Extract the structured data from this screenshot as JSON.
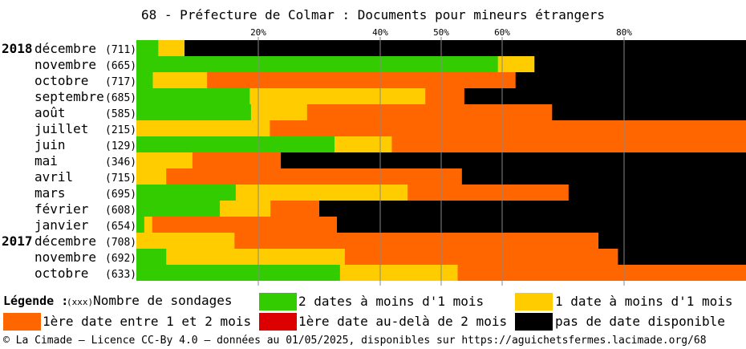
{
  "title": "68 - Préfecture de Colmar : Documents pour mineurs étrangers",
  "colors": {
    "green": "#33cc00",
    "yellow": "#ffcc00",
    "orange": "#ff6600",
    "red": "#dd0000",
    "black": "#000000",
    "grid": "#888888"
  },
  "chart_data": {
    "type": "bar",
    "orientation": "horizontal",
    "stacked": true,
    "xlim": [
      0,
      100
    ],
    "x_ticks": [
      {
        "value": 20,
        "label": "20%"
      },
      {
        "value": 40,
        "label": "40%"
      },
      {
        "value": 50,
        "label": "50%"
      },
      {
        "value": 60,
        "label": "60%"
      },
      {
        "value": 80,
        "label": "80%"
      }
    ],
    "series_colors": [
      "#33cc00",
      "#ffcc00",
      "#ff6600",
      "#dd0000",
      "#000000"
    ],
    "rows": [
      {
        "year": "2018",
        "month": "décembre",
        "count": "(711)",
        "values": [
          3.6,
          4.3,
          0,
          0,
          92.1
        ]
      },
      {
        "year": "",
        "month": "novembre",
        "count": "(665)",
        "values": [
          59.3,
          6.0,
          0,
          0,
          34.7
        ]
      },
      {
        "year": "",
        "month": "octobre",
        "count": "(717)",
        "values": [
          2.7,
          8.9,
          50.6,
          0,
          37.8
        ]
      },
      {
        "year": "",
        "month": "septembre",
        "count": "(685)",
        "values": [
          18.6,
          28.8,
          6.4,
          0,
          46.2
        ]
      },
      {
        "year": "",
        "month": "août",
        "count": "(585)",
        "values": [
          18.8,
          9.2,
          40.2,
          0,
          31.8
        ]
      },
      {
        "year": "",
        "month": "juillet",
        "count": "(215)",
        "values": [
          0,
          21.9,
          78.1,
          0,
          0
        ]
      },
      {
        "year": "",
        "month": "juin",
        "count": "(129)",
        "values": [
          32.5,
          9.4,
          58.1,
          0,
          0
        ]
      },
      {
        "year": "",
        "month": "mai",
        "count": "(346)",
        "values": [
          0,
          9.2,
          14.5,
          0,
          76.3
        ]
      },
      {
        "year": "",
        "month": "avril",
        "count": "(715)",
        "values": [
          0,
          4.9,
          48.5,
          0,
          46.6
        ]
      },
      {
        "year": "",
        "month": "mars",
        "count": "(695)",
        "values": [
          16.3,
          28.2,
          26.4,
          0,
          29.1
        ]
      },
      {
        "year": "",
        "month": "février",
        "count": "(608)",
        "values": [
          13.7,
          8.3,
          8.0,
          0,
          70.0
        ]
      },
      {
        "year": "",
        "month": "janvier",
        "count": "(654)",
        "values": [
          1.3,
          1.3,
          30.3,
          0,
          67.1
        ]
      },
      {
        "year": "2017",
        "month": "décembre",
        "count": "(708)",
        "values": [
          0,
          16.1,
          59.7,
          0,
          24.2
        ]
      },
      {
        "year": "",
        "month": "novembre",
        "count": "(692)",
        "values": [
          4.9,
          29.3,
          44.8,
          0,
          21.0
        ]
      },
      {
        "year": "",
        "month": "octobre",
        "count": "(633)",
        "values": [
          33.4,
          19.3,
          47.3,
          0,
          0
        ]
      }
    ]
  },
  "legend": {
    "title": "Légende :",
    "hint": "(xxx)",
    "hint_text": "Nombre de sondages",
    "items": [
      {
        "label": "2 dates à moins d'1 mois",
        "color": "#33cc00"
      },
      {
        "label": "1 date à moins d'1 mois",
        "color": "#ffcc00"
      },
      {
        "label": "1ère date entre 1 et 2 mois",
        "color": "#ff6600"
      },
      {
        "label": "1ère date au-delà de 2 mois",
        "color": "#dd0000"
      },
      {
        "label": "pas de date disponible",
        "color": "#000000"
      }
    ]
  },
  "footer": "© La Cimade — Licence CC-By 4.0 — données au 01/05/2025, disponibles sur https://aguichetsfermes.lacimade.org/68"
}
